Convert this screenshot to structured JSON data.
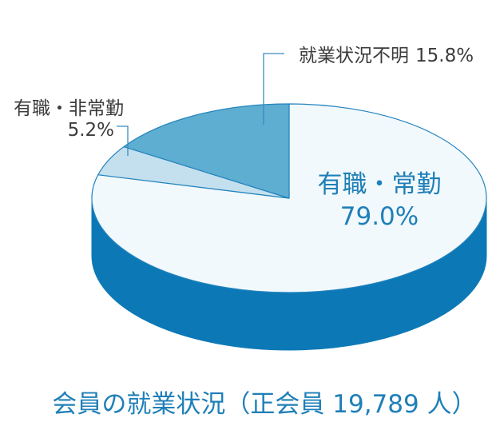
{
  "chart_data": {
    "type": "pie",
    "three_d": true,
    "title": "会員の就業状況（正会員 19,789 人）",
    "slices": [
      {
        "label": "有職・常勤",
        "value": 79.0,
        "value_label": "79.0%",
        "color": "#f2f9fd"
      },
      {
        "label": "有職・非常勤",
        "value": 5.2,
        "value_label": "5.2%",
        "color": "#c4e0ee"
      },
      {
        "label": "就業状況不明",
        "value": 15.8,
        "value_label": "15.8%",
        "color": "#5eaed2"
      }
    ],
    "side_color": "#0c79b6",
    "outline_color": "#2584bd",
    "leader_color": "#3a8bc0",
    "label_color": "#3c3c3c",
    "accent_color": "#1f7fb8"
  }
}
